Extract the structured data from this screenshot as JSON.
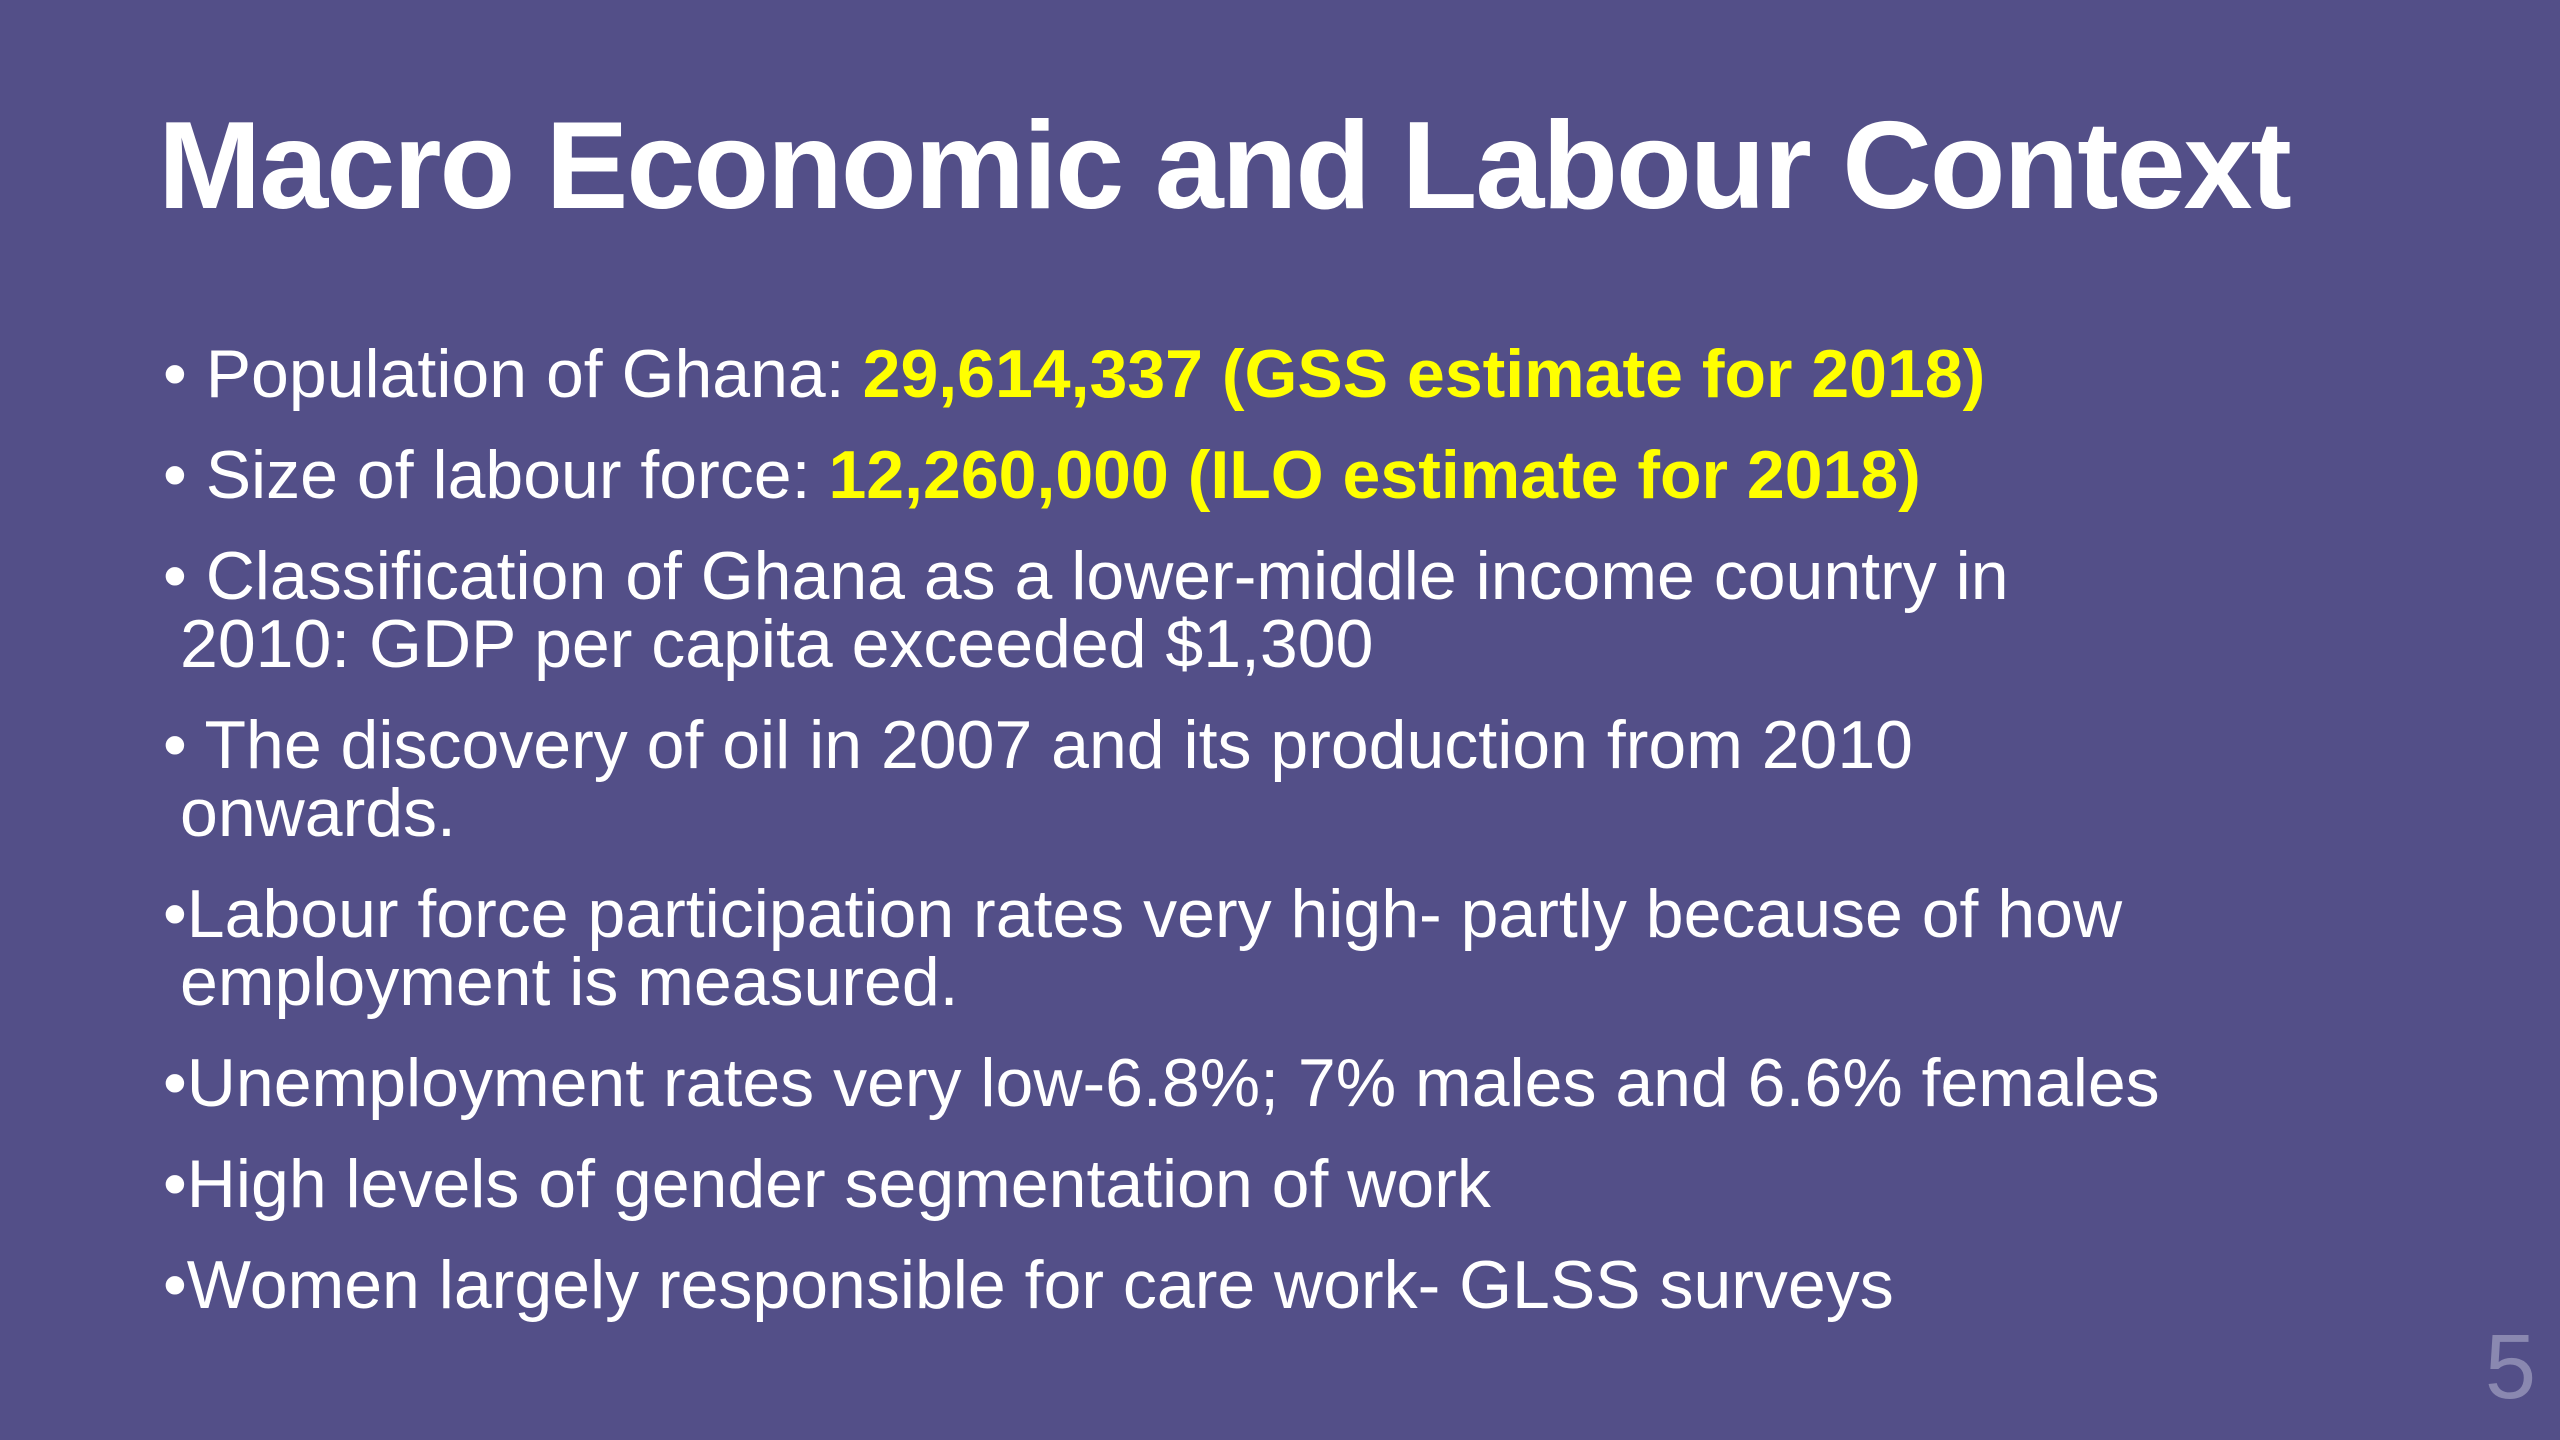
{
  "title": "Macro Economic and Labour Context",
  "bullets": [
    {
      "lines": [
        "• Population of Ghana:"
      ],
      "highlight": "29,614,337 (GSS estimate for 2018)"
    },
    {
      "lines": [
        "• Size of labour force:"
      ],
      "highlight": "12,260,000 (ILO estimate for 2018)"
    },
    {
      "lines": [
        "• Classification of Ghana as a lower-middle income country in",
        "2010: GDP per capita exceeded $1,300"
      ]
    },
    {
      "lines": [
        "• The discovery of oil in 2007 and its production from 2010",
        "onwards."
      ]
    },
    {
      "lines": [
        "•Labour force participation rates very high- partly because of how",
        "employment is measured."
      ]
    },
    {
      "lines": [
        "•Unemployment rates very low-6.8%; 7% males and 6.6% females"
      ]
    },
    {
      "lines": [
        "•High levels of gender segmentation of work"
      ]
    },
    {
      "lines": [
        "•Women largely responsible for care work- GLSS surveys"
      ]
    }
  ],
  "page_number": "5"
}
